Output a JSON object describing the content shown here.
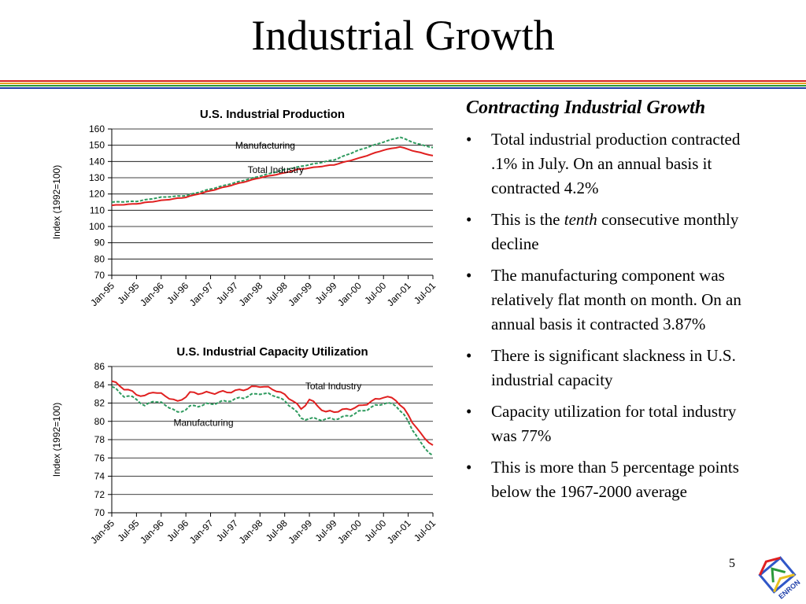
{
  "slide": {
    "title": "Industrial Growth",
    "page_number": "5",
    "logo_text": "ENRON",
    "rule_colors": [
      "#d42020",
      "#e8a020",
      "#2a9a3a",
      "#1f3faa"
    ]
  },
  "bullets": {
    "heading": "Contracting Industrial Growth",
    "items": [
      {
        "parts": [
          {
            "text": "Total industrial production contracted .1% in July.  On an annual basis it contracted 4.2%",
            "italic": false
          }
        ]
      },
      {
        "parts": [
          {
            "text": "This is the ",
            "italic": false
          },
          {
            "text": "tenth",
            "italic": true
          },
          {
            "text": " consecutive monthly decline",
            "italic": false
          }
        ]
      },
      {
        "parts": [
          {
            "text": "The manufacturing component was relatively flat month on month.  On an annual basis it contracted 3.87%",
            "italic": false
          }
        ]
      },
      {
        "parts": [
          {
            "text": "There is significant slackness in U.S. industrial capacity",
            "italic": false
          }
        ]
      },
      {
        "parts": [
          {
            "text": "Capacity utilization for total industry was 77%",
            "italic": false
          }
        ]
      },
      {
        "parts": [
          {
            "text": "This is more than 5 percentage points below the 1967-2000 average",
            "italic": false
          }
        ]
      }
    ]
  },
  "chart_data": [
    {
      "type": "line",
      "title": "U.S. Industrial Production",
      "xlabel": "",
      "ylabel": "Index (1992=100)",
      "ylim": [
        70,
        160
      ],
      "yticks": [
        70,
        80,
        90,
        100,
        110,
        120,
        130,
        140,
        150,
        160
      ],
      "x_tick_labels": [
        "Jan-95",
        "Jul-95",
        "Jan-96",
        "Jul-96",
        "Jan-97",
        "Jul-97",
        "Jan-98",
        "Jul-98",
        "Jan-99",
        "Jul-99",
        "Jan-00",
        "Jul-00",
        "Jan-01",
        "Jul-01"
      ],
      "x_points": 79,
      "grid": true,
      "legend": "inline labels",
      "series": [
        {
          "name": "Manufacturing",
          "color": "#2e9a5e",
          "dash": true,
          "anchors": [
            [
              0,
              115
            ],
            [
              6,
              115.5
            ],
            [
              12,
              118
            ],
            [
              18,
              119
            ],
            [
              24,
              123
            ],
            [
              30,
              127
            ],
            [
              36,
              131
            ],
            [
              42,
              135
            ],
            [
              48,
              138
            ],
            [
              54,
              141
            ],
            [
              60,
              147
            ],
            [
              66,
              152
            ],
            [
              70,
              155
            ],
            [
              74,
              151
            ],
            [
              79,
              148
            ]
          ]
        },
        {
          "name": "Total Industry",
          "color": "#e02020",
          "dash": false,
          "anchors": [
            [
              0,
              113
            ],
            [
              6,
              114
            ],
            [
              12,
              116
            ],
            [
              18,
              118
            ],
            [
              24,
              122
            ],
            [
              30,
              126
            ],
            [
              36,
              130
            ],
            [
              42,
              133
            ],
            [
              45,
              135
            ],
            [
              48,
              136
            ],
            [
              54,
              138
            ],
            [
              60,
              142
            ],
            [
              66,
              147
            ],
            [
              70,
              149
            ],
            [
              74,
              146
            ],
            [
              79,
              143
            ]
          ]
        }
      ],
      "labels": [
        {
          "text": "Manufacturing",
          "series": "Manufacturing",
          "at_x": 30,
          "at_y": 148
        },
        {
          "text": "Total Industry",
          "series": "Total Industry",
          "at_x": 33,
          "at_y": 133
        }
      ]
    },
    {
      "type": "line",
      "title": "U.S. Industrial Capacity Utilization",
      "xlabel": "",
      "ylabel": "Index (1992=100)",
      "ylim": [
        70,
        86
      ],
      "yticks": [
        70,
        72,
        74,
        76,
        78,
        80,
        82,
        84,
        86
      ],
      "x_tick_labels": [
        "Jan-95",
        "Jul-95",
        "Jan-96",
        "Jul-96",
        "Jan-97",
        "Jul-97",
        "Jan-98",
        "Jul-98",
        "Jan-99",
        "Jul-99",
        "Jan-00",
        "Jul-00",
        "Jan-01",
        "Jul-01"
      ],
      "x_points": 79,
      "grid": true,
      "legend": "inline labels",
      "series": [
        {
          "name": "Manufacturing",
          "color": "#2e9a5e",
          "dash": true,
          "anchors": [
            [
              0,
              83.8
            ],
            [
              3,
              82.8
            ],
            [
              6,
              82.5
            ],
            [
              8,
              81.6
            ],
            [
              10,
              82.3
            ],
            [
              14,
              81.6
            ],
            [
              16,
              80.9
            ],
            [
              19,
              81.6
            ],
            [
              24,
              81.9
            ],
            [
              30,
              82.4
            ],
            [
              36,
              83.1
            ],
            [
              40,
              82.8
            ],
            [
              44,
              81.5
            ],
            [
              46,
              80.3
            ],
            [
              48,
              80.3
            ],
            [
              52,
              80.2
            ],
            [
              56,
              80.4
            ],
            [
              60,
              81.0
            ],
            [
              66,
              82.0
            ],
            [
              69,
              81.8
            ],
            [
              72,
              80.0
            ],
            [
              75,
              77.6
            ],
            [
              79,
              75.8
            ]
          ]
        },
        {
          "name": "Total Industry",
          "color": "#e02020",
          "dash": false,
          "anchors": [
            [
              0,
              84.4
            ],
            [
              3,
              83.6
            ],
            [
              6,
              83.0
            ],
            [
              8,
              82.7
            ],
            [
              10,
              83.3
            ],
            [
              14,
              82.6
            ],
            [
              16,
              82.1
            ],
            [
              19,
              83.1
            ],
            [
              24,
              83.1
            ],
            [
              30,
              83.3
            ],
            [
              36,
              83.9
            ],
            [
              40,
              83.4
            ],
            [
              44,
              82.3
            ],
            [
              46,
              81.3
            ],
            [
              48,
              82.4
            ],
            [
              52,
              81.0
            ],
            [
              56,
              81.2
            ],
            [
              60,
              81.6
            ],
            [
              66,
              82.7
            ],
            [
              69,
              82.4
            ],
            [
              72,
              80.7
            ],
            [
              75,
              78.6
            ],
            [
              79,
              77.0
            ]
          ]
        }
      ],
      "labels": [
        {
          "text": "Total Industry",
          "series": "Total Industry",
          "at_x": 47,
          "at_y": 83.5
        },
        {
          "text": "Manufacturing",
          "series": "Manufacturing",
          "at_x": 15,
          "at_y": 79.5
        }
      ]
    }
  ]
}
